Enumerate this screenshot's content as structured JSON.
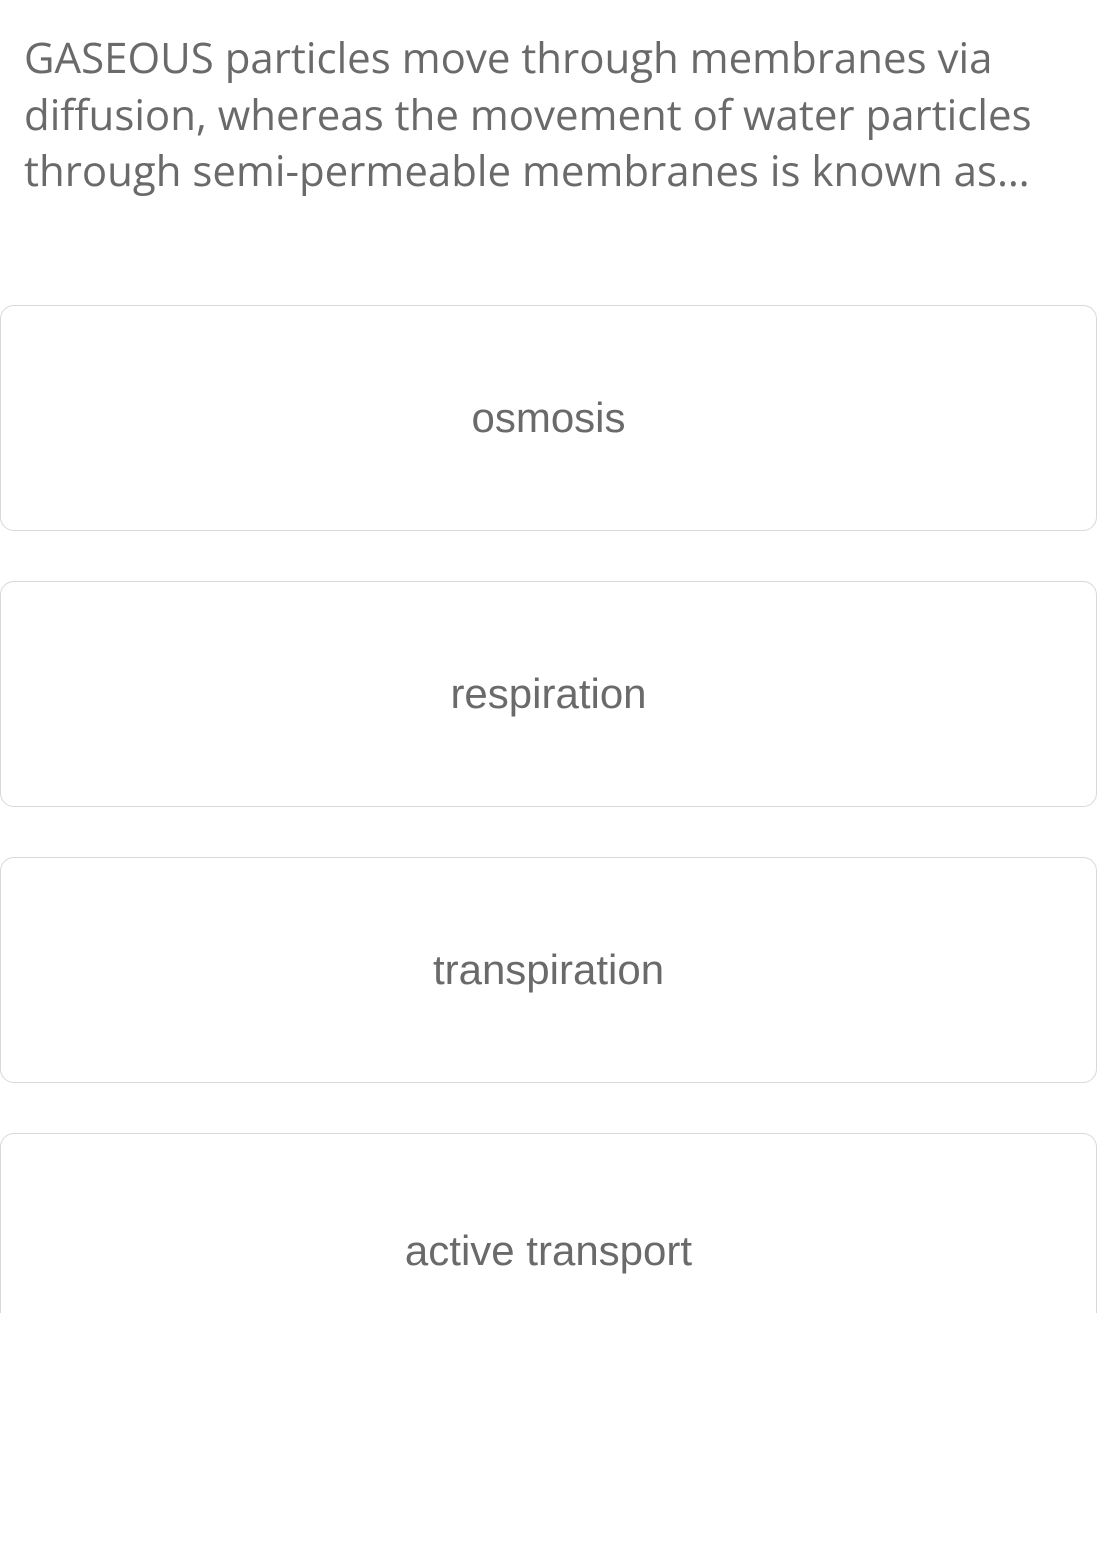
{
  "question": {
    "text": "GASEOUS particles move through membranes via diffusion, whereas the movement of water particles through semi-permeable membranes is known as…"
  },
  "options": [
    {
      "label": "osmosis"
    },
    {
      "label": "respiration"
    },
    {
      "label": "transpiration"
    },
    {
      "label": "active transport"
    }
  ],
  "colors": {
    "text": "#6a6a6a",
    "border": "#d8d8d8",
    "background": "#ffffff"
  }
}
